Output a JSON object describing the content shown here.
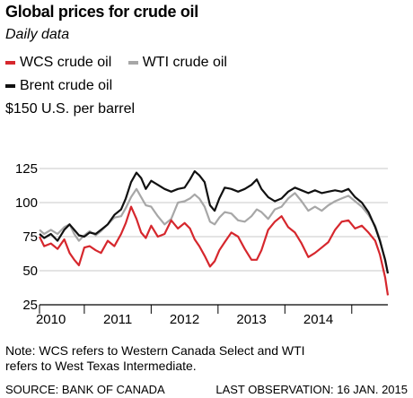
{
  "header": {
    "title": "Global prices for crude oil",
    "subtitle": "Daily data",
    "unit_label": "$150 U.S. per barrel"
  },
  "footer": {
    "note": "Note: WCS refers to Western Canada Select and WTI refers to West Texas Intermediate.",
    "source": "SOURCE: BANK OF CANADA",
    "last_observation": "LAST OBSERVATION: 16 JAN. 2015"
  },
  "colors": {
    "wcs": "#d6272d",
    "wti": "#a7a7a7",
    "brent": "#111111",
    "grid": "#c8c8c8",
    "axis": "#000000"
  },
  "chart_data": {
    "type": "line",
    "title": "Global prices for crude oil",
    "subtitle": "Daily data",
    "ylabel": "$150 U.S. per barrel",
    "ylim": [
      25,
      150
    ],
    "yticks": [
      25,
      50,
      75,
      100,
      125
    ],
    "xlim": [
      2009.83,
      2015.04
    ],
    "xticks": [
      2010,
      2011,
      2012,
      2013,
      2014
    ],
    "year_boundaries": [
      2009.5,
      2010.5,
      2011.5,
      2012.5,
      2013.5,
      2014.5
    ],
    "legend": [
      "WCS crude oil",
      "WTI crude oil",
      "Brent crude oil"
    ],
    "grid": true,
    "series": [
      {
        "name": "WCS crude oil",
        "key": "wcs",
        "x": [
          2009.83,
          2009.9,
          2010.0,
          2010.1,
          2010.2,
          2010.28,
          2010.35,
          2010.42,
          2010.5,
          2010.58,
          2010.67,
          2010.75,
          2010.85,
          2010.95,
          2011.05,
          2011.12,
          2011.2,
          2011.28,
          2011.35,
          2011.42,
          2011.5,
          2011.6,
          2011.7,
          2011.8,
          2011.9,
          2012.0,
          2012.08,
          2012.15,
          2012.22,
          2012.3,
          2012.38,
          2012.45,
          2012.52,
          2012.6,
          2012.7,
          2012.8,
          2012.9,
          2013.0,
          2013.08,
          2013.15,
          2013.25,
          2013.35,
          2013.45,
          2013.55,
          2013.65,
          2013.75,
          2013.85,
          2013.95,
          2014.05,
          2014.15,
          2014.25,
          2014.35,
          2014.45,
          2014.55,
          2014.65,
          2014.75,
          2014.85,
          2014.92,
          2015.0,
          2015.04
        ],
        "y": [
          75,
          68,
          70,
          66,
          73,
          63,
          58,
          54,
          67,
          68,
          65,
          63,
          72,
          68,
          77,
          85,
          97,
          88,
          78,
          74,
          83,
          75,
          77,
          87,
          81,
          85,
          81,
          73,
          68,
          61,
          53,
          57,
          65,
          71,
          78,
          75,
          66,
          58,
          58,
          65,
          80,
          86,
          90,
          82,
          78,
          70,
          60,
          63,
          67,
          71,
          80,
          86,
          87,
          81,
          83,
          78,
          72,
          62,
          45,
          32
        ]
      },
      {
        "name": "WTI crude oil",
        "key": "wti",
        "x": [
          2009.83,
          2009.9,
          2010.0,
          2010.1,
          2010.2,
          2010.28,
          2010.35,
          2010.42,
          2010.5,
          2010.58,
          2010.67,
          2010.75,
          2010.85,
          2010.95,
          2011.05,
          2011.12,
          2011.2,
          2011.28,
          2011.35,
          2011.42,
          2011.5,
          2011.6,
          2011.7,
          2011.8,
          2011.9,
          2012.0,
          2012.08,
          2012.15,
          2012.22,
          2012.3,
          2012.38,
          2012.45,
          2012.52,
          2012.6,
          2012.7,
          2012.8,
          2012.9,
          2013.0,
          2013.08,
          2013.15,
          2013.25,
          2013.35,
          2013.45,
          2013.55,
          2013.65,
          2013.75,
          2013.85,
          2013.95,
          2014.05,
          2014.15,
          2014.25,
          2014.35,
          2014.45,
          2014.55,
          2014.65,
          2014.75,
          2014.85,
          2014.92,
          2015.0,
          2015.04
        ],
        "y": [
          80,
          77,
          80,
          77,
          82,
          84,
          77,
          72,
          76,
          79,
          76,
          79,
          84,
          89,
          90,
          96,
          104,
          110,
          104,
          98,
          97,
          90,
          84,
          88,
          100,
          101,
          103,
          106,
          103,
          97,
          86,
          84,
          89,
          93,
          92,
          87,
          86,
          90,
          95,
          93,
          88,
          95,
          97,
          103,
          107,
          101,
          94,
          97,
          94,
          98,
          101,
          103,
          105,
          101,
          97,
          91,
          83,
          73,
          57,
          48
        ]
      },
      {
        "name": "Brent crude oil",
        "key": "brent",
        "x": [
          2009.83,
          2009.9,
          2010.0,
          2010.1,
          2010.2,
          2010.28,
          2010.35,
          2010.42,
          2010.5,
          2010.58,
          2010.67,
          2010.75,
          2010.85,
          2010.95,
          2011.05,
          2011.12,
          2011.2,
          2011.28,
          2011.35,
          2011.42,
          2011.5,
          2011.6,
          2011.7,
          2011.8,
          2011.9,
          2012.0,
          2012.08,
          2012.15,
          2012.22,
          2012.3,
          2012.38,
          2012.45,
          2012.52,
          2012.6,
          2012.7,
          2012.8,
          2012.9,
          2013.0,
          2013.08,
          2013.15,
          2013.25,
          2013.35,
          2013.45,
          2013.55,
          2013.65,
          2013.75,
          2013.85,
          2013.95,
          2014.05,
          2014.15,
          2014.25,
          2014.35,
          2014.45,
          2014.55,
          2014.65,
          2014.75,
          2014.85,
          2014.92,
          2015.0,
          2015.04
        ],
        "y": [
          77,
          74,
          77,
          72,
          80,
          84,
          80,
          76,
          75,
          78,
          77,
          80,
          84,
          91,
          95,
          103,
          115,
          122,
          118,
          110,
          116,
          113,
          110,
          108,
          110,
          111,
          117,
          123,
          120,
          115,
          98,
          94,
          103,
          111,
          110,
          108,
          110,
          113,
          117,
          110,
          104,
          101,
          103,
          108,
          111,
          109,
          107,
          109,
          107,
          108,
          109,
          108,
          110,
          104,
          100,
          93,
          82,
          72,
          58,
          48
        ]
      }
    ]
  }
}
